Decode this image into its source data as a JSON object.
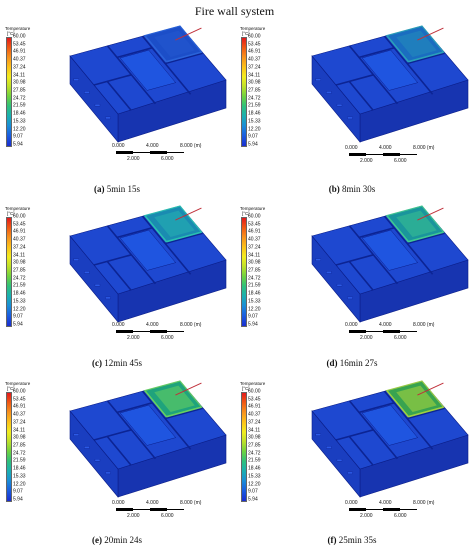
{
  "title": "Fire wall system",
  "legend": {
    "title": "Temperature",
    "unit": "[°C]",
    "ticks": [
      "60.00",
      "53.45",
      "46.91",
      "40.37",
      "37.24",
      "34.11",
      "30.98",
      "27.85",
      "24.72",
      "21.59",
      "18.46",
      "15.33",
      "12.20",
      "9.07",
      "5.94"
    ]
  },
  "scale_bar": {
    "top_labels": [
      "0.000",
      "4.000",
      "8.000 (m)"
    ],
    "bottom_labels": [
      "2.000",
      "6.000"
    ]
  },
  "panels": [
    {
      "letter": "(a)",
      "time": "5min 15s",
      "room_color": "#1c4fc8",
      "room_stroke": "#2a63d8",
      "glow": 0.0
    },
    {
      "letter": "(b)",
      "time": "8min 30s",
      "room_color": "#1a6fc0",
      "room_stroke": "#2aa0b8",
      "glow": 0.2
    },
    {
      "letter": "(c)",
      "time": "12min 45s",
      "room_color": "#1a8fb0",
      "room_stroke": "#2ac0b0",
      "glow": 0.35
    },
    {
      "letter": "(d)",
      "time": "16min 27s",
      "room_color": "#1a9a9a",
      "room_stroke": "#40c890",
      "glow": 0.5
    },
    {
      "letter": "(e)",
      "time": "20min 24s",
      "room_color": "#20a878",
      "room_stroke": "#66d060",
      "glow": 0.7
    },
    {
      "letter": "(f)",
      "time": "25min 35s",
      "room_color": "#3aa84a",
      "room_stroke": "#9ed040",
      "glow": 0.85
    }
  ]
}
